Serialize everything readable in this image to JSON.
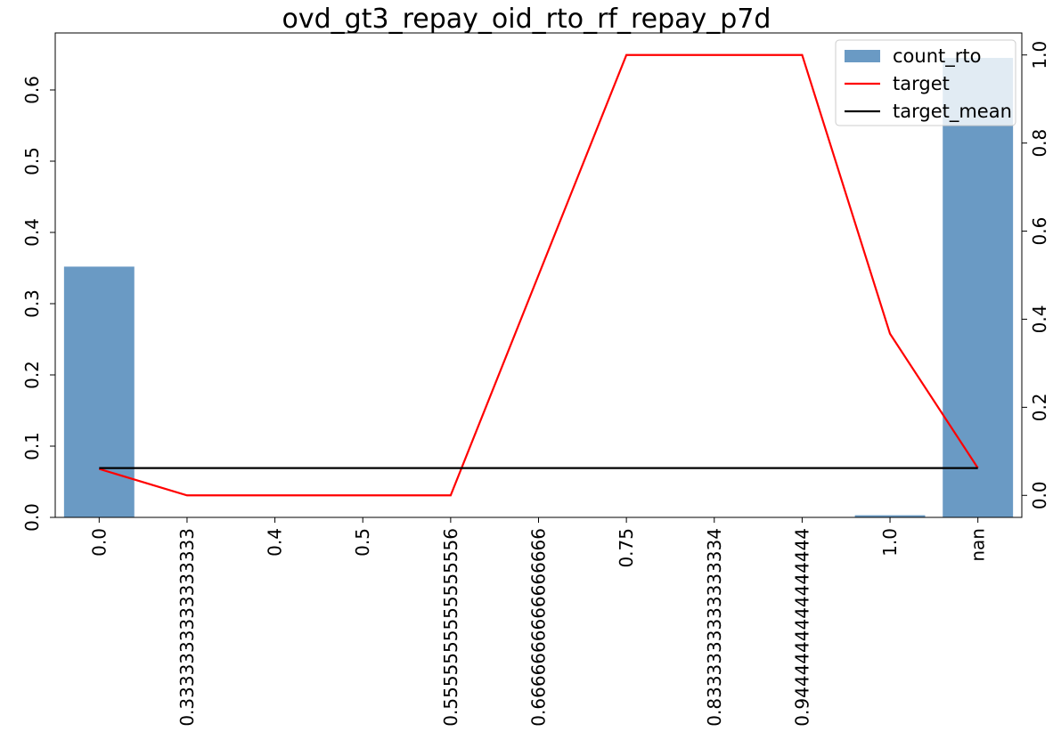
{
  "chart_data": {
    "type": "bar",
    "title": "ovd_gt3_repay_oid_rto_rf_repay_p7d",
    "xlabel": "",
    "ylabel": "",
    "categories": [
      "0.0",
      "0.3333333333333333",
      "0.4",
      "0.5",
      "0.5555555555555556",
      "0.6666666666666666",
      "0.75",
      "0.8333333333333334",
      "0.9444444444444444",
      "1.0",
      "nan"
    ],
    "series": [
      {
        "name": "count_rto",
        "kind": "bar",
        "axis": "left",
        "color": "#6a9ac4",
        "values": [
          0.352,
          0.0,
          0.0,
          0.0,
          0.0,
          0.0,
          0.0,
          0.0,
          0.0,
          0.003,
          0.645
        ]
      },
      {
        "name": "target",
        "kind": "line",
        "axis": "right",
        "color": "#ff0000",
        "values": [
          0.06,
          0.0,
          0.0,
          0.0,
          0.0,
          0.5,
          1.0,
          1.0,
          1.0,
          0.367,
          0.062
        ]
      },
      {
        "name": "target_mean",
        "kind": "line",
        "axis": "right",
        "color": "#000000",
        "values": [
          0.062,
          0.062,
          0.062,
          0.062,
          0.062,
          0.062,
          0.062,
          0.062,
          0.062,
          0.062,
          0.062
        ]
      }
    ],
    "y_left": {
      "lim": [
        0,
        0.68
      ],
      "ticks": [
        "0.0",
        "0.1",
        "0.2",
        "0.3",
        "0.4",
        "0.5",
        "0.6"
      ],
      "tick_values": [
        0,
        0.1,
        0.2,
        0.3,
        0.4,
        0.5,
        0.6
      ]
    },
    "y_right": {
      "lim": [
        -0.05,
        1.05
      ],
      "ticks": [
        "0.0",
        "0.2",
        "0.4",
        "0.6",
        "0.8",
        "1.0"
      ],
      "tick_values": [
        0,
        0.2,
        0.4,
        0.6,
        0.8,
        1.0
      ]
    },
    "grid": false,
    "legend": "top-right"
  }
}
